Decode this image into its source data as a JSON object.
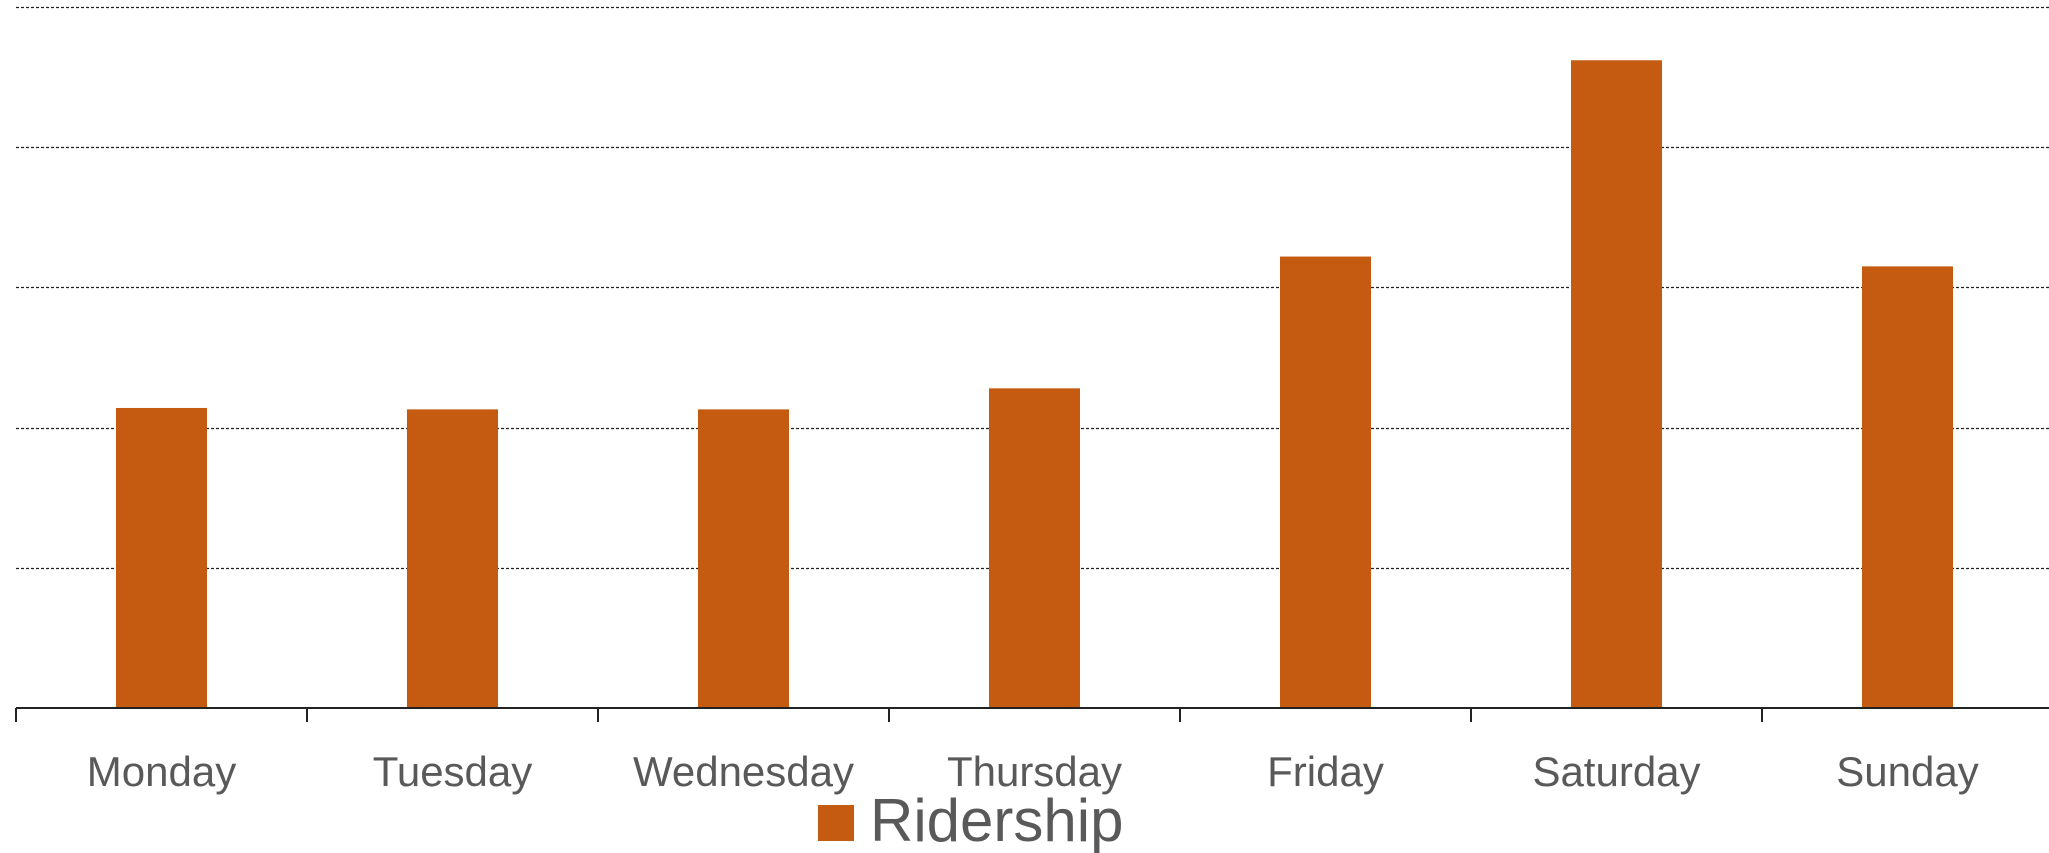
{
  "chart_data": {
    "type": "bar",
    "categories": [
      "Monday",
      "Tuesday",
      "Wednesday",
      "Thursday",
      "Friday",
      "Saturday",
      "Sunday"
    ],
    "series": [
      {
        "name": "Ridership",
        "values": [
          2.14,
          2.13,
          2.13,
          2.28,
          3.22,
          4.62,
          3.15
        ],
        "color": "#C55A11"
      }
    ],
    "ylim": [
      0,
      5
    ],
    "yticks": [
      0,
      1,
      2,
      3,
      4,
      5
    ],
    "grid": true,
    "legend_position": "bottom",
    "title": "",
    "xlabel": "",
    "ylabel": ""
  }
}
